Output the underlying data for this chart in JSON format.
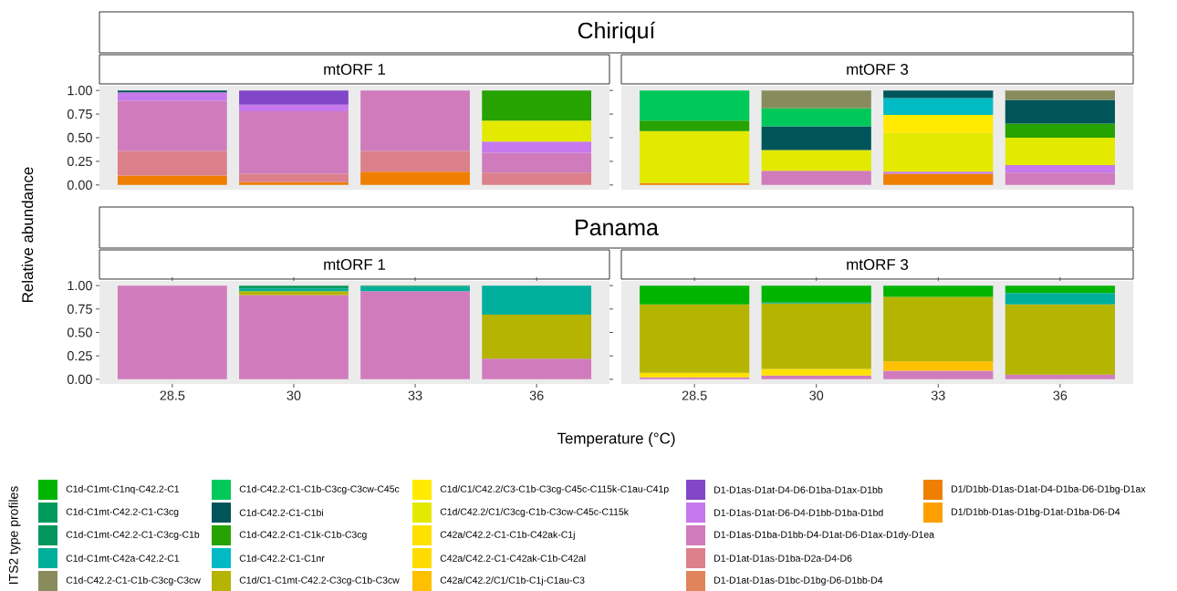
{
  "chart_data": [
    {
      "type": "bar",
      "stacked": true,
      "title": "Chiriquí",
      "subtitle": "mtORF 1",
      "categories": [
        "28.5",
        "30",
        "33",
        "36"
      ],
      "ylim": [
        -0.05,
        1.05
      ],
      "yticks": [
        {
          "value": 0,
          "label": "0.00"
        },
        {
          "value": 0.25,
          "label": "0.25"
        },
        {
          "value": 0.5,
          "label": "0.50"
        },
        {
          "value": 0.75,
          "label": "0.75"
        },
        {
          "value": 1,
          "label": "1.00"
        }
      ],
      "tick_labels": "y",
      "series": [
        {
          "color": "#ee7f00",
          "values": [
            0.1,
            0.03,
            0.14,
            null
          ]
        },
        {
          "color": "#dc808c",
          "values": [
            0.26,
            0.09,
            0.22,
            0.13
          ]
        },
        {
          "color": "#d07cbc",
          "values": [
            0.53,
            0.66,
            0.64,
            0.21
          ]
        },
        {
          "color": "#c678ec",
          "values": [
            0.09,
            0.07,
            null,
            0.12
          ]
        },
        {
          "color": "#8247c8",
          "values": [
            null,
            0.15,
            null,
            null
          ]
        },
        {
          "color": "#e3ea00",
          "values": [
            null,
            null,
            null,
            0.22
          ]
        },
        {
          "color": "#26a300",
          "values": [
            null,
            null,
            null,
            0.32
          ]
        },
        {
          "color": "#00555a",
          "values": [
            0.02,
            null,
            null,
            null
          ]
        }
      ]
    },
    {
      "type": "bar",
      "stacked": true,
      "subtitle": "mtORF 3",
      "categories": [
        "28.5",
        "30",
        "33",
        "36"
      ],
      "ylim": [
        -0.05,
        1.05
      ],
      "tick_labels": false,
      "series": [
        {
          "color": "#ee7f00",
          "values": [
            0.02,
            null,
            0.12,
            null
          ]
        },
        {
          "color": "#d07cbc",
          "values": [
            null,
            0.15,
            null,
            0.13
          ]
        },
        {
          "color": "#c678ec",
          "values": [
            null,
            null,
            0.02,
            0.08
          ]
        },
        {
          "color": "#e3ea00",
          "values": [
            0.55,
            0.22,
            0.41,
            0.29
          ]
        },
        {
          "color": "#ffea00",
          "values": [
            null,
            null,
            0.19,
            null
          ]
        },
        {
          "color": "#00bac4",
          "values": [
            null,
            null,
            0.18,
            null
          ]
        },
        {
          "color": "#26a300",
          "values": [
            0.11,
            null,
            null,
            0.15
          ]
        },
        {
          "color": "#00555a",
          "values": [
            null,
            0.25,
            0.08,
            0.25
          ]
        },
        {
          "color": "#00c85a",
          "values": [
            0.32,
            0.19,
            null,
            null
          ]
        },
        {
          "color": "#888c5c",
          "values": [
            null,
            0.19,
            null,
            0.1
          ]
        }
      ]
    },
    {
      "type": "bar",
      "stacked": true,
      "title": "Panama",
      "subtitle": "mtORF 1",
      "ylabel": "Relative abundance",
      "categories": [
        "28.5",
        "30",
        "33",
        "36"
      ],
      "ylim": [
        -0.05,
        1.05
      ],
      "yticks": [
        {
          "value": 0,
          "label": "0.00"
        },
        {
          "value": 0.25,
          "label": "0.25"
        },
        {
          "value": 0.5,
          "label": "0.50"
        },
        {
          "value": 0.75,
          "label": "0.75"
        },
        {
          "value": 1,
          "label": "1.00"
        }
      ],
      "series": [
        {
          "color": "#d07cbc",
          "values": [
            1.0,
            0.9,
            0.94,
            0.22
          ]
        },
        {
          "color": "#b5b400",
          "values": [
            null,
            0.04,
            null,
            0.47
          ]
        },
        {
          "color": "#00ae9c",
          "values": [
            null,
            0.03,
            0.05,
            0.31
          ]
        },
        {
          "color": "#009a5c",
          "values": [
            null,
            0.03,
            0.01,
            null
          ]
        }
      ]
    },
    {
      "type": "bar",
      "stacked": true,
      "subtitle": "mtORF 3",
      "xlabel": "Temperature (°C)",
      "legend_title": "ITS2 type profiles",
      "legend": "bottom",
      "categories": [
        "28.5",
        "30",
        "33",
        "36"
      ],
      "ylim": [
        -0.05,
        1.05
      ],
      "tick_labels": "x",
      "series": [
        {
          "name": "D1/D1bb-D1as-D1bg-D1at-D1ba-D6-D4",
          "color": "#ff9f00",
          "values": [
            null,
            null,
            null,
            null
          ]
        },
        {
          "name": "D1/D1bb-D1as-D1at-D4-D1ba-D6-D1bg-D1ax",
          "color": "#ee7f00",
          "values": [
            null,
            null,
            null,
            null
          ]
        },
        {
          "name": "D1-D1at-D1as-D1bc-D1bg-D6-D1bb-D4",
          "color": "#e0845c",
          "values": [
            null,
            null,
            null,
            null
          ]
        },
        {
          "name": "D1-D1at-D1as-D1ba-D2a-D4-D6",
          "color": "#dc808c",
          "values": [
            null,
            null,
            null,
            null
          ]
        },
        {
          "name": "D1-D1as-D1ba-D1bb-D4-D1at-D6-D1ax-D1dy-D1ea",
          "color": "#d07cbc",
          "values": [
            0.02,
            0.04,
            0.09,
            0.05
          ]
        },
        {
          "name": "D1-D1as-D1at-D6-D4-D1bb-D1ba-D1bd",
          "color": "#c678ec",
          "values": [
            null,
            null,
            null,
            null
          ]
        },
        {
          "name": "D1-D1as-D1at-D4-D6-D1ba-D1ax-D1bb",
          "color": "#8247c8",
          "values": [
            null,
            null,
            null,
            null
          ]
        },
        {
          "name": "C42a/C42.2/C1/C1b-C1j-C1au-C3",
          "color": "#ffc000",
          "values": [
            null,
            null,
            0.1,
            null
          ]
        },
        {
          "name": "C42a/C42.2-C1-C42ak-C1b-C42al",
          "color": "#ffdc00",
          "values": [
            null,
            null,
            null,
            null
          ]
        },
        {
          "name": "C42a/C42.2-C1-C1b-C42ak-C1j",
          "color": "#ffe100",
          "values": [
            0.05,
            0.07,
            null,
            null
          ]
        },
        {
          "name": "C1d/C42.2/C1/C3cg-C1b-C3cw-C45c-C115k",
          "color": "#e3ea00",
          "values": [
            null,
            null,
            null,
            null
          ]
        },
        {
          "name": "C1d/C1/C42.2/C3-C1b-C3cg-C45c-C115k-C1au-C41p",
          "color": "#ffea00",
          "values": [
            null,
            null,
            null,
            null
          ]
        },
        {
          "name": "C1d/C1-C1mt-C42.2-C3cg-C1b-C3cw",
          "color": "#b5b400",
          "values": [
            0.73,
            0.7,
            0.69,
            0.75
          ]
        },
        {
          "name": "C1d-C42.2-C1-C1nr",
          "color": "#00bac4",
          "values": [
            null,
            null,
            null,
            null
          ]
        },
        {
          "name": "C1d-C42.2-C1-C1k-C1b-C3cg",
          "color": "#26a300",
          "values": [
            null,
            null,
            null,
            null
          ]
        },
        {
          "name": "C1d-C42.2-C1-C1bi",
          "color": "#00555a",
          "values": [
            null,
            null,
            null,
            null
          ]
        },
        {
          "name": "C1d-C42.2-C1-C1b-C3cg-C3cw-C45c",
          "color": "#00c85a",
          "values": [
            null,
            null,
            null,
            null
          ]
        },
        {
          "name": "C1d-C42.2-C1-C1b-C3cg-C3cw",
          "color": "#888c5c",
          "values": [
            null,
            null,
            null,
            null
          ]
        },
        {
          "name": "C1d-C1mt-C42a-C42.2-C1",
          "color": "#00ae9c",
          "values": [
            null,
            0.01,
            null,
            0.12
          ]
        },
        {
          "name": "C1d-C1mt-C42.2-C1-C3cg-C1b",
          "color": "#00965e",
          "values": [
            null,
            null,
            null,
            null
          ]
        },
        {
          "name": "C1d-C1mt-C42.2-C1-C3cg",
          "color": "#009a5c",
          "values": [
            null,
            null,
            null,
            null
          ]
        },
        {
          "name": "C1d-C1mt-C1nq-C42.2-C1",
          "color": "#00b400",
          "values": [
            0.2,
            0.18,
            0.12,
            0.08
          ]
        }
      ]
    }
  ]
}
